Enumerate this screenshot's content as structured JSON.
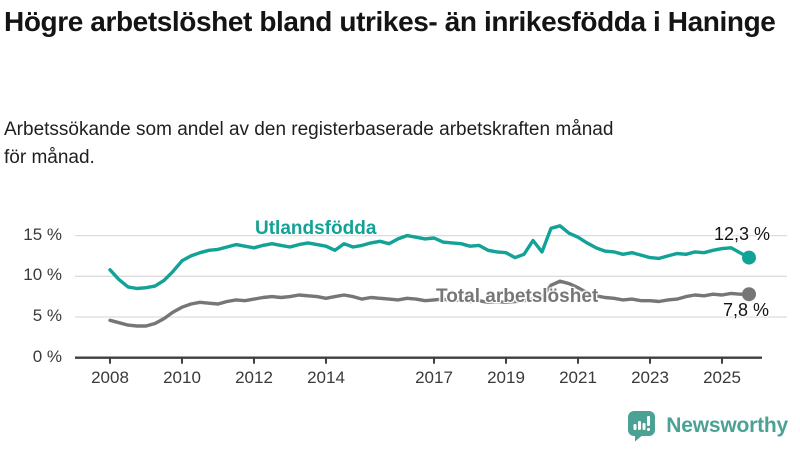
{
  "header": {
    "title": "Högre arbetslöshet bland utrikes- än inrikesfödda i Haninge",
    "subtitle_line1": "Arbetssökande som andel av den registerbaserade arbetskraften månad",
    "subtitle_line2": "för månad."
  },
  "chart_data": {
    "type": "line",
    "title": "Högre arbetslöshet bland utrikes- än inrikesfödda i Haninge",
    "subtitle": "Arbetssökande som andel av den registerbaserade arbetskraften månad för månad.",
    "unit": "%",
    "x_start": 2008.0,
    "x_step": 0.25,
    "xlim": [
      2007.9,
      2026.1
    ],
    "ylim": [
      0,
      17
    ],
    "grid": "horizontal",
    "legend_position": "inline-labels",
    "x_ticks": [
      {
        "value": 2008,
        "label": "2008"
      },
      {
        "value": 2010,
        "label": "2010"
      },
      {
        "value": 2012,
        "label": "2012"
      },
      {
        "value": 2014,
        "label": "2014"
      },
      {
        "value": 2017,
        "label": "2017"
      },
      {
        "value": 2019,
        "label": "2019"
      },
      {
        "value": 2021,
        "label": "2021"
      },
      {
        "value": 2023,
        "label": "2023"
      },
      {
        "value": 2025,
        "label": "2025"
      }
    ],
    "y_ticks": [
      {
        "value": 0,
        "label": "0 %"
      },
      {
        "value": 5,
        "label": "5 %"
      },
      {
        "value": 10,
        "label": "10 %"
      },
      {
        "value": 15,
        "label": "15 %"
      }
    ],
    "series": [
      {
        "name": "Utlandsfödda",
        "color": "#13a297",
        "end_label": "12,3 %",
        "end_value": 12.3,
        "values": [
          10.8,
          9.6,
          8.7,
          8.5,
          8.6,
          8.8,
          9.5,
          10.6,
          11.9,
          12.5,
          12.9,
          13.2,
          13.3,
          13.6,
          13.9,
          13.7,
          13.5,
          13.8,
          14.0,
          13.8,
          13.6,
          13.9,
          14.1,
          13.9,
          13.7,
          13.2,
          14.0,
          13.6,
          13.8,
          14.1,
          14.3,
          14.0,
          14.6,
          15.0,
          14.8,
          14.6,
          14.7,
          14.2,
          14.1,
          14.0,
          13.7,
          13.8,
          13.2,
          13.0,
          12.9,
          12.3,
          12.7,
          14.4,
          13.0,
          15.9,
          16.2,
          15.3,
          14.8,
          14.1,
          13.5,
          13.1,
          13.0,
          12.7,
          12.9,
          12.6,
          12.3,
          12.2,
          12.5,
          12.8,
          12.7,
          13.0,
          12.9,
          13.2,
          13.4,
          13.5,
          12.9,
          12.3
        ]
      },
      {
        "name": "Total arbetslöshet",
        "color": "#767676",
        "end_label": "7,8 %",
        "end_value": 7.8,
        "values": [
          4.6,
          4.3,
          4.0,
          3.9,
          3.9,
          4.2,
          4.8,
          5.6,
          6.2,
          6.6,
          6.8,
          6.7,
          6.6,
          6.9,
          7.1,
          7.0,
          7.2,
          7.4,
          7.5,
          7.4,
          7.5,
          7.7,
          7.6,
          7.5,
          7.3,
          7.5,
          7.7,
          7.5,
          7.2,
          7.4,
          7.3,
          7.2,
          7.1,
          7.3,
          7.2,
          7.0,
          7.1,
          7.2,
          7.0,
          7.1,
          6.9,
          7.0,
          6.8,
          6.9,
          6.8,
          6.9,
          7.0,
          7.2,
          7.4,
          8.9,
          9.4,
          9.1,
          8.6,
          8.0,
          7.6,
          7.4,
          7.3,
          7.1,
          7.2,
          7.0,
          7.0,
          6.9,
          7.1,
          7.2,
          7.5,
          7.7,
          7.6,
          7.8,
          7.7,
          7.9,
          7.8,
          7.8
        ]
      }
    ]
  },
  "branding": {
    "logo_text": "Newsworthy",
    "logo_icon": "bar-chart-speech-bubble-icon",
    "color": "#4ba294"
  }
}
